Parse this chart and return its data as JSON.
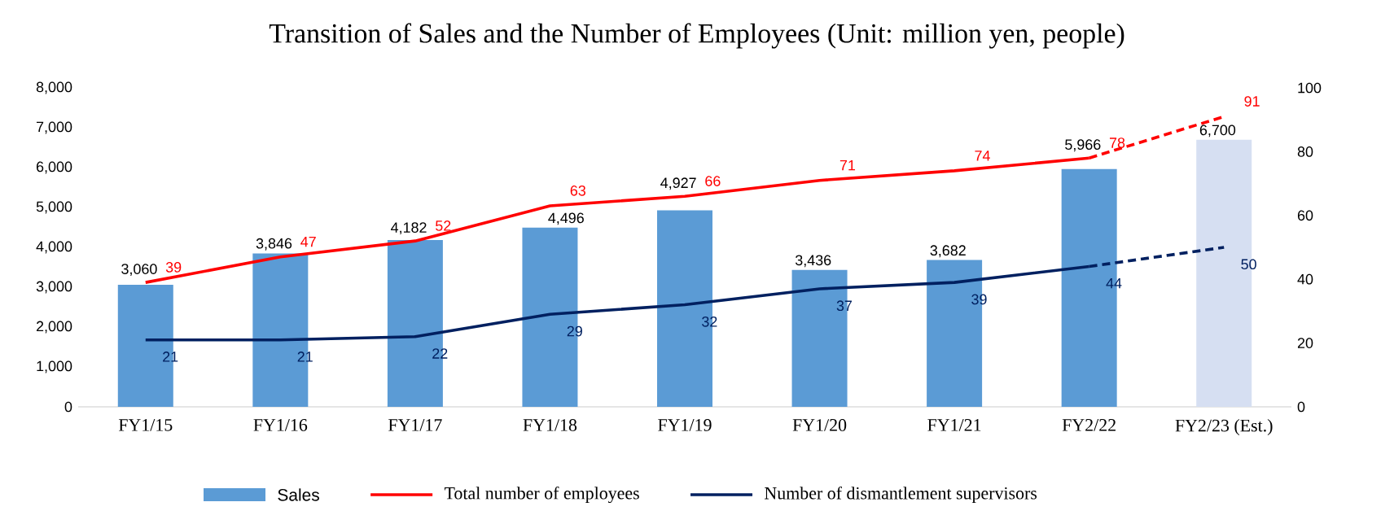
{
  "chart_data": {
    "type": "bar",
    "title": "Transition of Sales and the Number of Employees (Unit: million yen, people)",
    "categories": [
      "FY1/15",
      "FY1/16",
      "FY1/17",
      "FY1/18",
      "FY1/19",
      "FY1/20",
      "FY1/21",
      "FY2/22",
      "FY2/23 (Est.)"
    ],
    "series": [
      {
        "name": "Sales",
        "type": "bar",
        "color": "#5b9bd5",
        "colors": [
          "#5b9bd5",
          "#5b9bd5",
          "#5b9bd5",
          "#5b9bd5",
          "#5b9bd5",
          "#5b9bd5",
          "#5b9bd5",
          "#5b9bd5",
          "#d6dff2"
        ],
        "values": [
          3060,
          3846,
          4182,
          4496,
          4927,
          3436,
          3682,
          5966,
          6700
        ],
        "value_labels": [
          "3,060",
          "3,846",
          "4,182",
          "4,496",
          "4,927",
          "3,436",
          "3,682",
          "5,966",
          "6,700"
        ]
      },
      {
        "name": "Total number of employees",
        "type": "line",
        "axis": "y2",
        "color": "#ff0000",
        "line_style": "solid",
        "values": [
          39,
          47,
          52,
          63,
          66,
          71,
          74,
          78,
          null
        ],
        "value_labels": [
          "39",
          "47",
          "52",
          "63",
          "66",
          "71",
          "74",
          "78",
          null
        ]
      },
      {
        "type": "line",
        "axis": "y2",
        "color": "#ff0000",
        "line_style": "dashed",
        "values": [
          null,
          null,
          null,
          null,
          null,
          null,
          null,
          78,
          91
        ],
        "value_labels": [
          null,
          null,
          null,
          null,
          null,
          null,
          null,
          null,
          "91"
        ]
      },
      {
        "name": "Number of dismantlement supervisors",
        "type": "line",
        "axis": "y2",
        "color": "#002060",
        "line_style": "solid",
        "values": [
          21,
          21,
          22,
          29,
          32,
          37,
          39,
          44,
          null
        ],
        "value_labels": [
          "21",
          "21",
          "22",
          "29",
          "32",
          "37",
          "39",
          "44",
          null
        ]
      },
      {
        "type": "line",
        "axis": "y2",
        "color": "#002060",
        "line_style": "dashed",
        "values": [
          null,
          null,
          null,
          null,
          null,
          null,
          null,
          44,
          50
        ],
        "value_labels": [
          null,
          null,
          null,
          null,
          null,
          null,
          null,
          null,
          "50"
        ]
      }
    ],
    "ylim": [
      0,
      8000
    ],
    "yticks": [
      {
        "value": 0,
        "label": "0"
      },
      {
        "value": 1000,
        "label": "1,000"
      },
      {
        "value": 2000,
        "label": "2,000"
      },
      {
        "value": 3000,
        "label": "3,000"
      },
      {
        "value": 4000,
        "label": "4,000"
      },
      {
        "value": 5000,
        "label": "5,000"
      },
      {
        "value": 6000,
        "label": "6,000"
      },
      {
        "value": 7000,
        "label": "7,000"
      },
      {
        "value": 8000,
        "label": "8,000"
      }
    ],
    "y2lim": [
      0,
      100
    ],
    "y2ticks": [
      0,
      20,
      40,
      60,
      80,
      100
    ],
    "legend": "bottom"
  }
}
